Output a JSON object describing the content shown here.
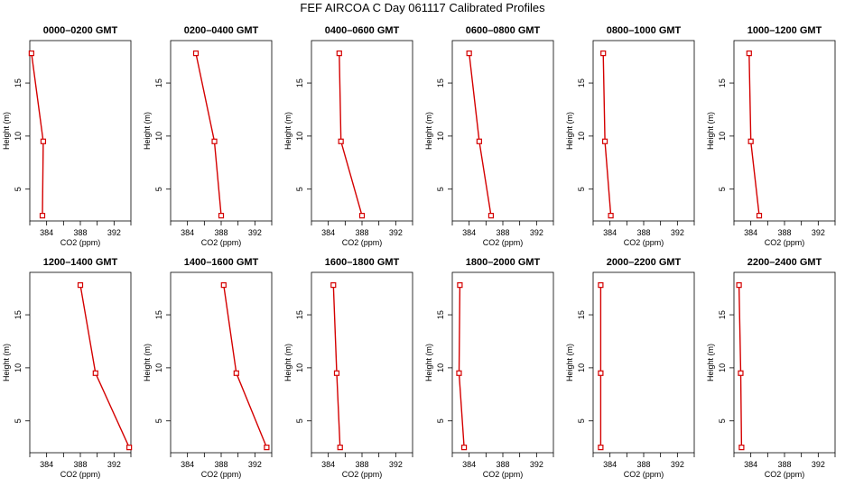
{
  "page": {
    "title": "FEF AIRCOA C  Day 061117  Calibrated Profiles"
  },
  "colors": {
    "line": "#d40000",
    "axis": "#000000"
  },
  "chart_data": [
    {
      "type": "line",
      "title": "0000–0200 GMT",
      "xlabel": "CO2 (ppm)",
      "ylabel": "Height (m)",
      "xlim": [
        382,
        394
      ],
      "ylim": [
        2,
        19
      ],
      "xticks": [
        384,
        388,
        392
      ],
      "yticks": [
        5,
        10,
        15
      ],
      "points": [
        {
          "x": 382.2,
          "y": 17.8
        },
        {
          "x": 383.6,
          "y": 9.5
        },
        {
          "x": 383.5,
          "y": 2.5
        }
      ]
    },
    {
      "type": "line",
      "title": "0200–0400 GMT",
      "xlabel": "CO2 (ppm)",
      "ylabel": "Height (m)",
      "xlim": [
        382,
        394
      ],
      "ylim": [
        2,
        19
      ],
      "xticks": [
        384,
        388,
        392
      ],
      "yticks": [
        5,
        10,
        15
      ],
      "points": [
        {
          "x": 385.0,
          "y": 17.8
        },
        {
          "x": 387.2,
          "y": 9.5
        },
        {
          "x": 388.0,
          "y": 2.5
        }
      ]
    },
    {
      "type": "line",
      "title": "0400–0600 GMT",
      "xlabel": "CO2 (ppm)",
      "ylabel": "Height (m)",
      "xlim": [
        382,
        394
      ],
      "ylim": [
        2,
        19
      ],
      "xticks": [
        384,
        388,
        392
      ],
      "yticks": [
        5,
        10,
        15
      ],
      "points": [
        {
          "x": 385.3,
          "y": 17.8
        },
        {
          "x": 385.5,
          "y": 9.5
        },
        {
          "x": 388.0,
          "y": 2.5
        }
      ]
    },
    {
      "type": "line",
      "title": "0600–0800 GMT",
      "xlabel": "CO2 (ppm)",
      "ylabel": "Height (m)",
      "xlim": [
        382,
        394
      ],
      "ylim": [
        2,
        19
      ],
      "xticks": [
        384,
        388,
        392
      ],
      "yticks": [
        5,
        10,
        15
      ],
      "points": [
        {
          "x": 384.0,
          "y": 17.8
        },
        {
          "x": 385.2,
          "y": 9.5
        },
        {
          "x": 386.6,
          "y": 2.5
        }
      ]
    },
    {
      "type": "line",
      "title": "0800–1000 GMT",
      "xlabel": "CO2 (ppm)",
      "ylabel": "Height (m)",
      "xlim": [
        382,
        394
      ],
      "ylim": [
        2,
        19
      ],
      "xticks": [
        384,
        388,
        392
      ],
      "yticks": [
        5,
        10,
        15
      ],
      "points": [
        {
          "x": 383.2,
          "y": 17.8
        },
        {
          "x": 383.4,
          "y": 9.5
        },
        {
          "x": 384.1,
          "y": 2.5
        }
      ]
    },
    {
      "type": "line",
      "title": "1000–1200 GMT",
      "xlabel": "CO2 (ppm)",
      "ylabel": "Height (m)",
      "xlim": [
        382,
        394
      ],
      "ylim": [
        2,
        19
      ],
      "xticks": [
        384,
        388,
        392
      ],
      "yticks": [
        5,
        10,
        15
      ],
      "points": [
        {
          "x": 383.8,
          "y": 17.8
        },
        {
          "x": 384.0,
          "y": 9.5
        },
        {
          "x": 385.0,
          "y": 2.5
        }
      ]
    },
    {
      "type": "line",
      "title": "1200–1400 GMT",
      "xlabel": "CO2 (ppm)",
      "ylabel": "Height (m)",
      "xlim": [
        382,
        394
      ],
      "ylim": [
        2,
        19
      ],
      "xticks": [
        384,
        388,
        392
      ],
      "yticks": [
        5,
        10,
        15
      ],
      "points": [
        {
          "x": 388.0,
          "y": 17.8
        },
        {
          "x": 389.8,
          "y": 9.5
        },
        {
          "x": 393.8,
          "y": 2.5
        }
      ]
    },
    {
      "type": "line",
      "title": "1400–1600 GMT",
      "xlabel": "CO2 (ppm)",
      "ylabel": "Height (m)",
      "xlim": [
        382,
        394
      ],
      "ylim": [
        2,
        19
      ],
      "xticks": [
        384,
        388,
        392
      ],
      "yticks": [
        5,
        10,
        15
      ],
      "points": [
        {
          "x": 388.3,
          "y": 17.8
        },
        {
          "x": 389.8,
          "y": 9.5
        },
        {
          "x": 393.4,
          "y": 2.5
        }
      ]
    },
    {
      "type": "line",
      "title": "1600–1800 GMT",
      "xlabel": "CO2 (ppm)",
      "ylabel": "Height (m)",
      "xlim": [
        382,
        394
      ],
      "ylim": [
        2,
        19
      ],
      "xticks": [
        384,
        388,
        392
      ],
      "yticks": [
        5,
        10,
        15
      ],
      "points": [
        {
          "x": 384.6,
          "y": 17.8
        },
        {
          "x": 385.0,
          "y": 9.5
        },
        {
          "x": 385.4,
          "y": 2.5
        }
      ]
    },
    {
      "type": "line",
      "title": "1800–2000 GMT",
      "xlabel": "CO2 (ppm)",
      "ylabel": "Height (m)",
      "xlim": [
        382,
        394
      ],
      "ylim": [
        2,
        19
      ],
      "xticks": [
        384,
        388,
        392
      ],
      "yticks": [
        5,
        10,
        15
      ],
      "points": [
        {
          "x": 382.9,
          "y": 17.8
        },
        {
          "x": 382.8,
          "y": 9.5
        },
        {
          "x": 383.4,
          "y": 2.5
        }
      ]
    },
    {
      "type": "line",
      "title": "2000–2200 GMT",
      "xlabel": "CO2 (ppm)",
      "ylabel": "Height (m)",
      "xlim": [
        382,
        394
      ],
      "ylim": [
        2,
        19
      ],
      "xticks": [
        384,
        388,
        392
      ],
      "yticks": [
        5,
        10,
        15
      ],
      "points": [
        {
          "x": 382.9,
          "y": 17.8
        },
        {
          "x": 382.9,
          "y": 9.5
        },
        {
          "x": 382.9,
          "y": 2.5
        }
      ]
    },
    {
      "type": "line",
      "title": "2200–2400 GMT",
      "xlabel": "CO2 (ppm)",
      "ylabel": "Height (m)",
      "xlim": [
        382,
        394
      ],
      "ylim": [
        2,
        19
      ],
      "xticks": [
        384,
        388,
        392
      ],
      "yticks": [
        5,
        10,
        15
      ],
      "points": [
        {
          "x": 382.6,
          "y": 17.8
        },
        {
          "x": 382.8,
          "y": 9.5
        },
        {
          "x": 382.9,
          "y": 2.5
        }
      ]
    }
  ]
}
